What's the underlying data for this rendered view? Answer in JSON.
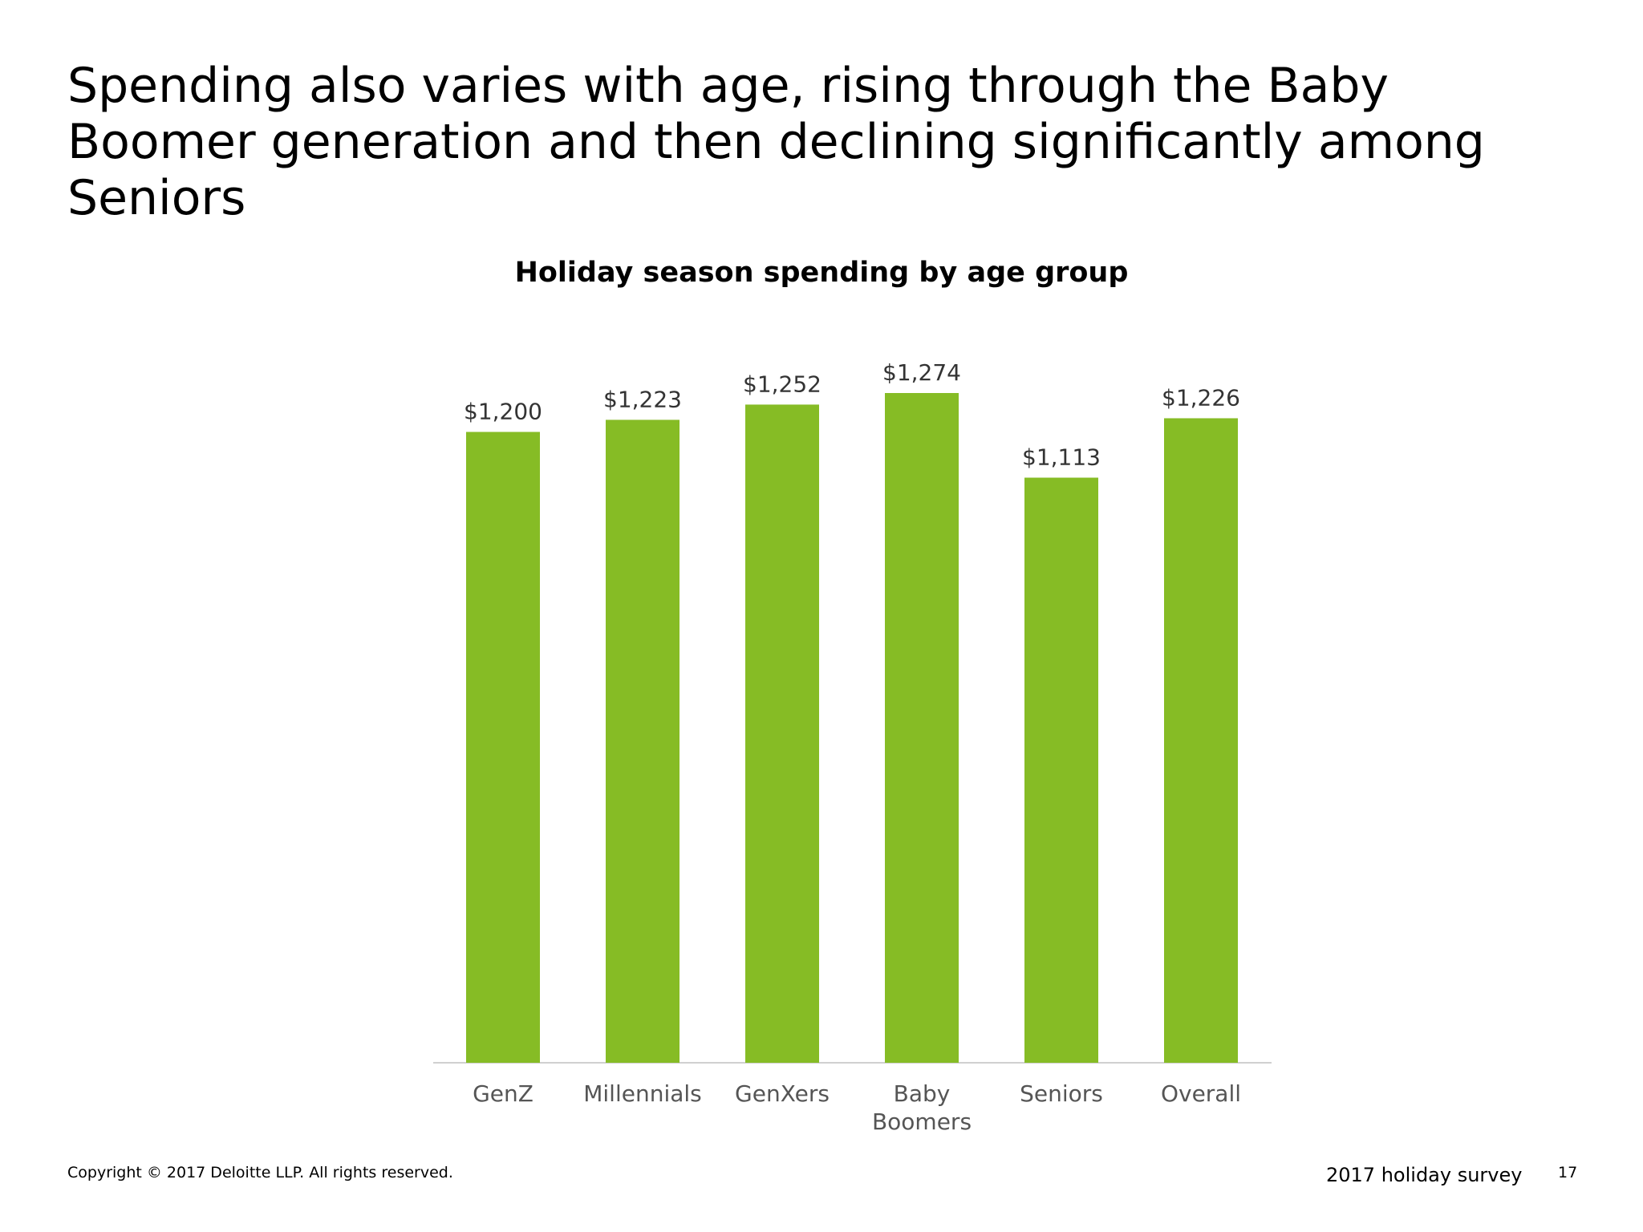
{
  "slide": {
    "title": "Spending also varies with age, rising through the Baby Boomer generation and then declining significantly among Seniors"
  },
  "chart_data": {
    "type": "bar",
    "title": "Holiday season spending by age group",
    "categories": [
      [
        "GenZ"
      ],
      [
        "Millennials"
      ],
      [
        "GenXers"
      ],
      [
        "Baby",
        "Boomers"
      ],
      [
        "Seniors"
      ],
      [
        "Overall"
      ]
    ],
    "values": [
      1200,
      1223,
      1252,
      1274,
      1113,
      1226
    ],
    "data_labels": [
      "$1,200",
      "$1,223",
      "$1,252",
      "$1,274",
      "$1,113",
      "$1,226"
    ],
    "xlabel": "",
    "ylabel": "",
    "grid": false,
    "legend": "none",
    "bar_color": "#86BC25"
  },
  "footer": {
    "copyright": "Copyright © 2017 Deloitte LLP. All rights reserved.",
    "survey": "2017 holiday survey",
    "page_number": "17"
  }
}
